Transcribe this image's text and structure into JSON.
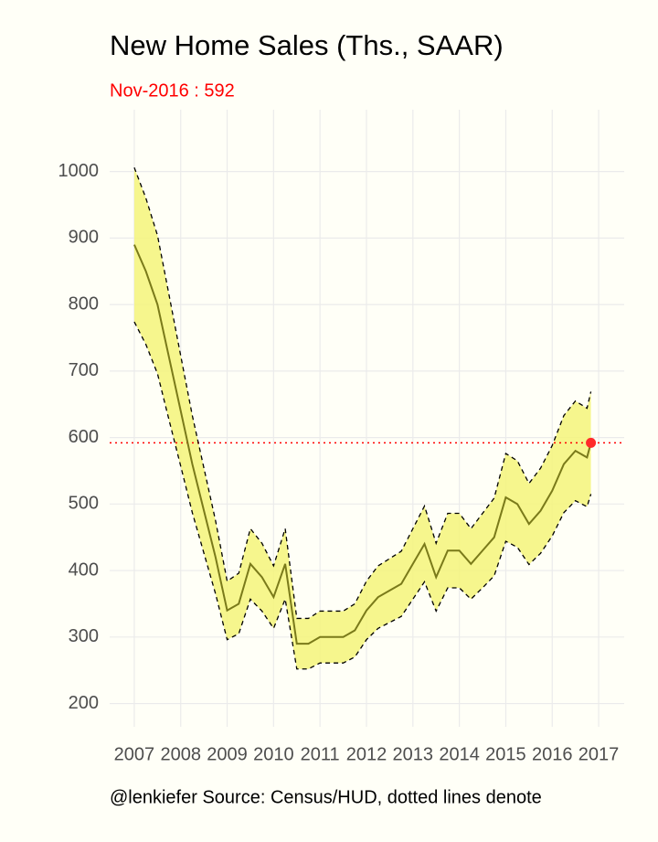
{
  "chart_data": {
    "type": "line",
    "title": "New Home Sales (Ths., SAAR)",
    "subtitle": "Nov-2016 : 592",
    "caption": "@lenkiefer Source: Census/HUD, dotted lines denote",
    "x": [
      2007.0,
      2007.25,
      2007.5,
      2007.75,
      2008.0,
      2008.25,
      2008.5,
      2008.75,
      2009.0,
      2009.25,
      2009.5,
      2009.75,
      2010.0,
      2010.25,
      2010.5,
      2010.75,
      2011.0,
      2011.25,
      2011.5,
      2011.75,
      2012.0,
      2012.25,
      2012.5,
      2012.75,
      2013.0,
      2013.25,
      2013.5,
      2013.75,
      2014.0,
      2014.25,
      2014.5,
      2014.75,
      2015.0,
      2015.25,
      2015.5,
      2015.75,
      2016.0,
      2016.25,
      2016.5,
      2016.75,
      2016.833
    ],
    "series": [
      {
        "color": "#7a7a1a",
        "linestyle": "solid",
        "values": [
          890,
          850,
          800,
          720,
          640,
          560,
          490,
          420,
          340,
          350,
          410,
          390,
          360,
          410,
          290,
          290,
          300,
          300,
          300,
          310,
          340,
          360,
          370,
          380,
          410,
          440,
          390,
          430,
          430,
          410,
          430,
          450,
          510,
          500,
          470,
          490,
          520,
          560,
          580,
          570,
          592
        ]
      },
      {
        "color": "#000000",
        "linestyle": "dashed",
        "values": [
          774,
          740,
          696,
          626,
          557,
          487,
          426,
          365,
          296,
          305,
          357,
          339,
          313,
          357,
          252,
          252,
          261,
          261,
          261,
          270,
          296,
          313,
          322,
          331,
          357,
          383,
          339,
          374,
          374,
          357,
          374,
          392,
          444,
          435,
          409,
          426,
          452,
          487,
          505,
          496,
          515
        ]
      },
      {
        "color": "#000000",
        "linestyle": "dashed",
        "values": [
          1006,
          960,
          904,
          814,
          723,
          633,
          554,
          475,
          384,
          396,
          463,
          441,
          407,
          463,
          328,
          328,
          339,
          339,
          339,
          350,
          384,
          407,
          418,
          429,
          463,
          497,
          441,
          486,
          486,
          463,
          486,
          509,
          576,
          565,
          531,
          554,
          588,
          633,
          655,
          644,
          669
        ]
      }
    ],
    "band_color": "#f5f57a",
    "hline": 592,
    "hline_color": "#ff0000",
    "point_color": "#ff2a2a",
    "xlim": [
      2006.47,
      2017.55
    ],
    "xticks": [
      2007,
      2008,
      2009,
      2010,
      2011,
      2012,
      2013,
      2014,
      2015,
      2016,
      2017
    ],
    "ylim": [
      165,
      1093
    ],
    "yticks": [
      200,
      300,
      400,
      500,
      600,
      700,
      800,
      900,
      1000
    ],
    "grid": true
  }
}
